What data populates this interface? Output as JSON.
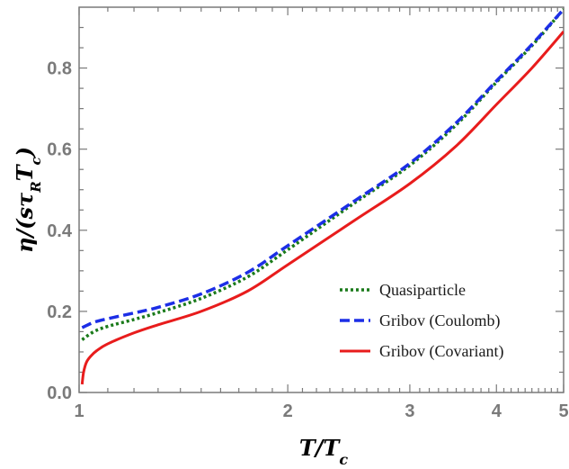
{
  "chart_data": {
    "type": "line",
    "xlabel": "T/T_c",
    "ylabel": "η/(sτ_R T_c)",
    "xscale": "log",
    "xlim": [
      1,
      5
    ],
    "ylim": [
      0,
      0.95
    ],
    "xticks": [
      1,
      2,
      3,
      4,
      5
    ],
    "yticks": [
      0.0,
      0.2,
      0.4,
      0.6,
      0.8
    ],
    "ytick_labels": [
      "0.0",
      "0.2",
      "0.4",
      "0.6",
      "0.8"
    ],
    "legend_position": "bottom-right",
    "grid": false,
    "series": [
      {
        "name": "Quasiparticle",
        "style": "dotted",
        "color": "#1a7a1a",
        "x": [
          1.01,
          1.05,
          1.1,
          1.2,
          1.3,
          1.5,
          1.75,
          2.0,
          2.5,
          3.0,
          3.5,
          4.0,
          4.5,
          5.0
        ],
        "y": [
          0.13,
          0.15,
          0.163,
          0.18,
          0.197,
          0.232,
          0.285,
          0.352,
          0.468,
          0.56,
          0.66,
          0.765,
          0.855,
          0.945
        ]
      },
      {
        "name": "Gribov (Coulomb)",
        "style": "dashed",
        "color": "#1c2ee6",
        "x": [
          1.01,
          1.05,
          1.1,
          1.2,
          1.3,
          1.5,
          1.75,
          2.0,
          2.5,
          3.0,
          3.5,
          4.0,
          4.5,
          5.0
        ],
        "y": [
          0.16,
          0.173,
          0.182,
          0.196,
          0.21,
          0.243,
          0.296,
          0.362,
          0.473,
          0.565,
          0.665,
          0.768,
          0.858,
          0.945
        ]
      },
      {
        "name": "Gribov (Covariant)",
        "style": "solid",
        "color": "#e81c1c",
        "x": [
          1.01,
          1.015,
          1.025,
          1.04,
          1.06,
          1.1,
          1.2,
          1.3,
          1.5,
          1.75,
          2.0,
          2.5,
          3.0,
          3.5,
          4.0,
          4.5,
          5.0
        ],
        "y": [
          0.02,
          0.05,
          0.075,
          0.09,
          0.103,
          0.12,
          0.147,
          0.167,
          0.2,
          0.25,
          0.315,
          0.425,
          0.515,
          0.608,
          0.71,
          0.8,
          0.89
        ]
      }
    ]
  }
}
